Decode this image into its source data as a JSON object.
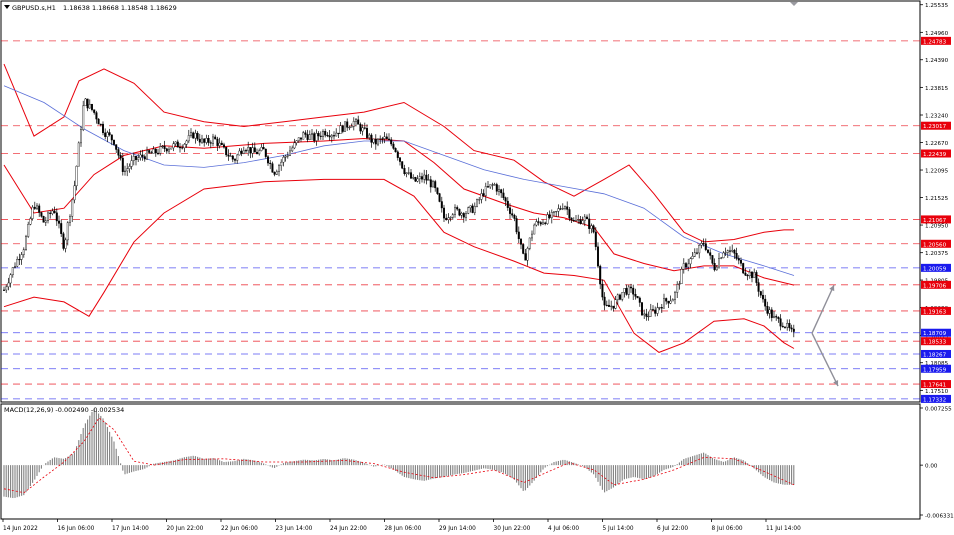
{
  "header": {
    "symbol": "GBPUSD.s,H1",
    "ohlc": "1.18638 1.18668 1.18548 1.18629"
  },
  "macd": {
    "label": "MACD(12,26,9) -0.002490 -0.002534",
    "ticks": [
      {
        "value": 0.007255,
        "label": "0.007255"
      },
      {
        "value": 0.0,
        "label": "0.00"
      },
      {
        "value": -0.006331,
        "label": "-0.006331"
      }
    ]
  },
  "x_axis": {
    "labels": [
      "14 Jun 2022",
      "16 Jun 06:00",
      "17 Jun 14:00",
      "20 Jun 22:00",
      "22 Jun 06:00",
      "23 Jun 14:00",
      "24 Jun 22:00",
      "28 Jun 06:00",
      "29 Jun 14:00",
      "30 Jun 22:00",
      "4 Jul 06:00",
      "5 Jul 14:00",
      "6 Jul 22:00",
      "8 Jul 06:00",
      "11 Jul 14:00"
    ]
  },
  "colors": {
    "background": "#ffffff",
    "grid_axis": "#000000",
    "bollinger": "#e8000b",
    "moving_average": "#5a6fd8",
    "red_level": "#e8000b",
    "blue_level": "#1a1aee",
    "candles": "#000000",
    "macd_hist": "#808080",
    "macd_signal": "#e8000b",
    "projection_arrow": "#8f8f99"
  },
  "chart_data": {
    "type": "candlestick",
    "symbol": "GBPUSD.s",
    "timeframe": "H1",
    "last_ohlc": {
      "open": 1.18638,
      "high": 1.18668,
      "low": 1.18548,
      "close": 1.18629
    },
    "y_ticks": [
      "1.25535",
      "1.24960",
      "1.24390",
      "1.23815",
      "1.23240",
      "1.22670",
      "1.22095",
      "1.21525",
      "1.20950",
      "1.20375",
      "1.19805",
      "1.19230",
      "1.18655",
      "1.18085",
      "1.17510"
    ],
    "ylim": [
      1.1733,
      1.2555
    ],
    "price_levels": [
      {
        "value": "1.24783",
        "label": "1.24783",
        "color": "red"
      },
      {
        "value": "1.23017",
        "label": "1.23017",
        "color": "red"
      },
      {
        "value": "1.22439",
        "label": "1.22439",
        "color": "red"
      },
      {
        "value": "1.21067",
        "label": "1.21067",
        "color": "red"
      },
      {
        "value": "1.20560",
        "label": "1.20560",
        "color": "red"
      },
      {
        "value": "1.20059",
        "label": "1.20059",
        "color": "blue"
      },
      {
        "value": "1.19706",
        "label": "1.19706",
        "color": "red"
      },
      {
        "value": "1.19163",
        "label": "1.19163",
        "color": "red"
      },
      {
        "value": "1.18709",
        "label": "1.18709",
        "color": "blue"
      },
      {
        "value": "1.18533",
        "label": "1.18533",
        "color": "red"
      },
      {
        "value": "1.18267",
        "label": "1.18267",
        "color": "blue"
      },
      {
        "value": "1.17959",
        "label": "1.17959",
        "color": "blue"
      },
      {
        "value": "1.17641",
        "label": "1.17641",
        "color": "red"
      },
      {
        "value": "1.17332",
        "label": "1.17332",
        "color": "blue"
      }
    ],
    "close_path": [
      [
        0,
        1.196
      ],
      [
        10,
        1.201
      ],
      [
        20,
        1.205
      ],
      [
        30,
        1.214
      ],
      [
        40,
        1.21
      ],
      [
        50,
        1.213
      ],
      [
        60,
        1.205
      ],
      [
        70,
        1.217
      ],
      [
        80,
        1.2355
      ],
      [
        90,
        1.233
      ],
      [
        100,
        1.229
      ],
      [
        110,
        1.227
      ],
      [
        120,
        1.2205
      ],
      [
        130,
        1.223
      ],
      [
        140,
        1.224
      ],
      [
        150,
        1.2245
      ],
      [
        160,
        1.2255
      ],
      [
        170,
        1.226
      ],
      [
        180,
        1.2265
      ],
      [
        190,
        1.2285
      ],
      [
        200,
        1.2265
      ],
      [
        210,
        1.2275
      ],
      [
        220,
        1.225
      ],
      [
        230,
        1.223
      ],
      [
        240,
        1.226
      ],
      [
        250,
        1.2245
      ],
      [
        260,
        1.225
      ],
      [
        270,
        1.2205
      ],
      [
        280,
        1.2235
      ],
      [
        290,
        1.226
      ],
      [
        300,
        1.2285
      ],
      [
        310,
        1.2275
      ],
      [
        320,
        1.229
      ],
      [
        330,
        1.2285
      ],
      [
        340,
        1.23
      ],
      [
        350,
        1.231
      ],
      [
        360,
        1.229
      ],
      [
        370,
        1.2265
      ],
      [
        380,
        1.2275
      ],
      [
        390,
        1.226
      ],
      [
        400,
        1.221
      ],
      [
        410,
        1.2185
      ],
      [
        420,
        1.2195
      ],
      [
        430,
        1.2175
      ],
      [
        440,
        1.211
      ],
      [
        450,
        1.2125
      ],
      [
        460,
        1.212
      ],
      [
        470,
        1.213
      ],
      [
        480,
        1.2165
      ],
      [
        490,
        1.218
      ],
      [
        500,
        1.215
      ],
      [
        510,
        1.211
      ],
      [
        520,
        1.202
      ],
      [
        530,
        1.2095
      ],
      [
        540,
        1.2105
      ],
      [
        550,
        1.2115
      ],
      [
        560,
        1.214
      ],
      [
        570,
        1.21
      ],
      [
        580,
        1.211
      ],
      [
        590,
        1.208
      ],
      [
        600,
        1.192
      ],
      [
        610,
        1.193
      ],
      [
        620,
        1.196
      ],
      [
        630,
        1.1955
      ],
      [
        640,
        1.1905
      ],
      [
        650,
        1.1915
      ],
      [
        660,
        1.1935
      ],
      [
        670,
        1.1945
      ],
      [
        680,
        1.201
      ],
      [
        690,
        1.203
      ],
      [
        700,
        1.206
      ],
      [
        710,
        1.2005
      ],
      [
        720,
        1.2045
      ],
      [
        730,
        1.2035
      ],
      [
        740,
        1.2
      ],
      [
        750,
        1.199
      ],
      [
        760,
        1.193
      ],
      [
        770,
        1.19
      ],
      [
        780,
        1.189
      ],
      [
        790,
        1.1865
      ]
    ],
    "bb_upper": [
      [
        0,
        1.243
      ],
      [
        30,
        1.228
      ],
      [
        60,
        1.232
      ],
      [
        75,
        1.2395
      ],
      [
        100,
        1.242
      ],
      [
        130,
        1.239
      ],
      [
        160,
        1.233
      ],
      [
        200,
        1.231
      ],
      [
        240,
        1.23
      ],
      [
        280,
        1.231
      ],
      [
        320,
        1.232
      ],
      [
        360,
        1.233
      ],
      [
        400,
        1.235
      ],
      [
        440,
        1.23
      ],
      [
        470,
        1.225
      ],
      [
        510,
        1.223
      ],
      [
        540,
        1.2185
      ],
      [
        570,
        1.2155
      ],
      [
        600,
        1.219
      ],
      [
        625,
        1.222
      ],
      [
        650,
        1.216
      ],
      [
        680,
        1.208
      ],
      [
        700,
        1.206
      ],
      [
        730,
        1.2065
      ],
      [
        760,
        1.208
      ],
      [
        780,
        1.2085
      ],
      [
        790,
        1.2085
      ]
    ],
    "bb_mid": [
      [
        0,
        1.222
      ],
      [
        30,
        1.212
      ],
      [
        60,
        1.213
      ],
      [
        90,
        1.22
      ],
      [
        120,
        1.224
      ],
      [
        160,
        1.226
      ],
      [
        200,
        1.2255
      ],
      [
        260,
        1.2265
      ],
      [
        320,
        1.227
      ],
      [
        360,
        1.2275
      ],
      [
        400,
        1.227
      ],
      [
        430,
        1.2225
      ],
      [
        460,
        1.217
      ],
      [
        500,
        1.214
      ],
      [
        530,
        1.212
      ],
      [
        560,
        1.211
      ],
      [
        590,
        1.209
      ],
      [
        610,
        1.2035
      ],
      [
        640,
        1.2015
      ],
      [
        670,
        1.2
      ],
      [
        700,
        1.201
      ],
      [
        730,
        1.201
      ],
      [
        760,
        1.1985
      ],
      [
        790,
        1.197
      ]
    ],
    "bb_lower": [
      [
        0,
        1.1925
      ],
      [
        30,
        1.1945
      ],
      [
        60,
        1.1935
      ],
      [
        85,
        1.1905
      ],
      [
        100,
        1.1955
      ],
      [
        130,
        1.206
      ],
      [
        160,
        1.212
      ],
      [
        200,
        1.217
      ],
      [
        260,
        1.2185
      ],
      [
        320,
        1.219
      ],
      [
        380,
        1.219
      ],
      [
        410,
        1.2155
      ],
      [
        440,
        1.208
      ],
      [
        470,
        1.205
      ],
      [
        510,
        1.202
      ],
      [
        540,
        1.1995
      ],
      [
        570,
        1.199
      ],
      [
        600,
        1.198
      ],
      [
        630,
        1.187
      ],
      [
        655,
        1.183
      ],
      [
        680,
        1.185
      ],
      [
        710,
        1.1895
      ],
      [
        740,
        1.19
      ],
      [
        760,
        1.1885
      ],
      [
        780,
        1.185
      ],
      [
        790,
        1.1838
      ]
    ],
    "moving_average": [
      [
        0,
        1.2385
      ],
      [
        40,
        1.235
      ],
      [
        80,
        1.2295
      ],
      [
        120,
        1.225
      ],
      [
        160,
        1.222
      ],
      [
        200,
        1.2215
      ],
      [
        240,
        1.2225
      ],
      [
        280,
        1.224
      ],
      [
        320,
        1.226
      ],
      [
        360,
        1.227
      ],
      [
        400,
        1.227
      ],
      [
        440,
        1.224
      ],
      [
        480,
        1.221
      ],
      [
        520,
        1.219
      ],
      [
        560,
        1.2175
      ],
      [
        600,
        1.216
      ],
      [
        640,
        1.213
      ],
      [
        680,
        1.207
      ],
      [
        720,
        1.2035
      ],
      [
        760,
        1.201
      ],
      [
        790,
        1.199
      ]
    ],
    "projection": {
      "start": [
        812,
        1.187
      ],
      "up_target": [
        834,
        1.197
      ],
      "down_target": [
        838,
        1.176
      ]
    },
    "macd_hist": [
      [
        0,
        -0.004
      ],
      [
        10,
        -0.0042
      ],
      [
        20,
        -0.0038
      ],
      [
        30,
        -0.002
      ],
      [
        40,
        0.0001
      ],
      [
        50,
        0.001
      ],
      [
        60,
        0.0008
      ],
      [
        70,
        0.0015
      ],
      [
        80,
        0.005
      ],
      [
        90,
        0.0072
      ],
      [
        100,
        0.0058
      ],
      [
        110,
        0.003
      ],
      [
        120,
        -0.0012
      ],
      [
        130,
        -0.0008
      ],
      [
        140,
        -0.0005
      ],
      [
        150,
        0.0002
      ],
      [
        160,
        0.0004
      ],
      [
        170,
        0.0006
      ],
      [
        180,
        0.001
      ],
      [
        190,
        0.0012
      ],
      [
        200,
        0.0008
      ],
      [
        210,
        0.0009
      ],
      [
        220,
        0.0004
      ],
      [
        230,
        0.0005
      ],
      [
        240,
        0.0008
      ],
      [
        250,
        0.0006
      ],
      [
        260,
        0.0002
      ],
      [
        270,
        -0.0004
      ],
      [
        280,
        0.0003
      ],
      [
        290,
        0.0005
      ],
      [
        300,
        0.0007
      ],
      [
        310,
        0.0006
      ],
      [
        320,
        0.0008
      ],
      [
        330,
        0.0006
      ],
      [
        340,
        0.0009
      ],
      [
        350,
        0.0007
      ],
      [
        360,
        0.0003
      ],
      [
        370,
        -0.0002
      ],
      [
        380,
        0.0001
      ],
      [
        390,
        -0.0006
      ],
      [
        400,
        -0.0015
      ],
      [
        410,
        -0.0018
      ],
      [
        420,
        -0.002
      ],
      [
        430,
        -0.0017
      ],
      [
        440,
        -0.0015
      ],
      [
        450,
        -0.0012
      ],
      [
        460,
        -0.001
      ],
      [
        470,
        -0.0007
      ],
      [
        480,
        -0.0004
      ],
      [
        490,
        -0.0006
      ],
      [
        500,
        -0.001
      ],
      [
        510,
        -0.0018
      ],
      [
        520,
        -0.0034
      ],
      [
        530,
        -0.002
      ],
      [
        540,
        -0.0004
      ],
      [
        550,
        0.0004
      ],
      [
        560,
        0.0007
      ],
      [
        570,
        0.0003
      ],
      [
        580,
        -0.0002
      ],
      [
        590,
        -0.0012
      ],
      [
        600,
        -0.0035
      ],
      [
        610,
        -0.0028
      ],
      [
        620,
        -0.0018
      ],
      [
        630,
        -0.0015
      ],
      [
        640,
        -0.0018
      ],
      [
        650,
        -0.0014
      ],
      [
        660,
        -0.0006
      ],
      [
        670,
        -0.0002
      ],
      [
        680,
        0.0008
      ],
      [
        690,
        0.0012
      ],
      [
        700,
        0.0016
      ],
      [
        710,
        0.0008
      ],
      [
        720,
        0.0004
      ],
      [
        730,
        0.001
      ],
      [
        740,
        0.0006
      ],
      [
        750,
        -0.0004
      ],
      [
        760,
        -0.0015
      ],
      [
        770,
        -0.0022
      ],
      [
        780,
        -0.0025
      ],
      [
        790,
        -0.0025
      ]
    ],
    "macd_signal": [
      [
        0,
        -0.003
      ],
      [
        20,
        -0.0035
      ],
      [
        40,
        -0.0015
      ],
      [
        60,
        0.0004
      ],
      [
        80,
        0.003
      ],
      [
        95,
        0.006
      ],
      [
        110,
        0.0045
      ],
      [
        130,
        0.0005
      ],
      [
        150,
        0.0
      ],
      [
        180,
        0.0007
      ],
      [
        220,
        0.0008
      ],
      [
        260,
        0.0004
      ],
      [
        300,
        0.0004
      ],
      [
        340,
        0.0006
      ],
      [
        370,
        0.0002
      ],
      [
        400,
        -0.0009
      ],
      [
        430,
        -0.0016
      ],
      [
        460,
        -0.0012
      ],
      [
        490,
        -0.0006
      ],
      [
        520,
        -0.0022
      ],
      [
        545,
        -0.0008
      ],
      [
        565,
        0.0003
      ],
      [
        590,
        -0.0006
      ],
      [
        610,
        -0.0025
      ],
      [
        640,
        -0.0018
      ],
      [
        670,
        -0.0006
      ],
      [
        700,
        0.001
      ],
      [
        730,
        0.0008
      ],
      [
        760,
        -0.0008
      ],
      [
        790,
        -0.0025
      ]
    ]
  }
}
